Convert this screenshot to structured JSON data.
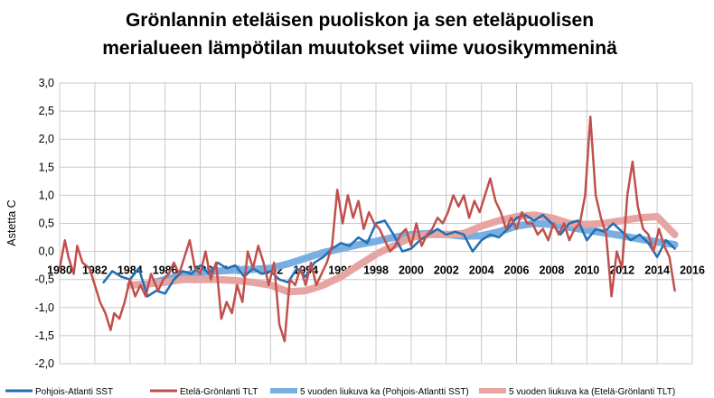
{
  "chart_data": {
    "type": "line",
    "title": [
      "Grönlannin eteläisen puoliskon ja sen eteläpuolisen",
      "merialueen lämpötilan muutokset viime vuosikymmeninä"
    ],
    "ylabel": "Astetta C",
    "xlabel": "",
    "xlim": [
      1980,
      2016
    ],
    "ylim": [
      -2.0,
      3.0
    ],
    "x_ticks": [
      "1980",
      "1982",
      "1984",
      "1986",
      "1988",
      "1990",
      "1992",
      "1994",
      "1996",
      "1998",
      "2000",
      "2002",
      "2004",
      "2006",
      "2008",
      "2010",
      "2012",
      "2014",
      "2016"
    ],
    "y_ticks": [
      "3,0",
      "2,5",
      "2,0",
      "1,5",
      "1,0",
      "0,5",
      "0,0",
      "-0,5",
      "-1,0",
      "-1,5",
      "-2,0"
    ],
    "grid": true,
    "legend_position": "bottom",
    "series": [
      {
        "name": "Pohjois-Atlanti SST",
        "color": "#1f6fb4",
        "x": [
          1982.5,
          1983.0,
          1983.5,
          1984.0,
          1984.5,
          1985.0,
          1985.5,
          1986.0,
          1986.5,
          1987.0,
          1987.5,
          1988.0,
          1988.5,
          1989.0,
          1989.5,
          1990.0,
          1990.5,
          1991.0,
          1991.5,
          1992.0,
          1992.5,
          1993.0,
          1993.5,
          1994.0,
          1994.5,
          1995.0,
          1995.5,
          1996.0,
          1996.5,
          1997.0,
          1997.5,
          1998.0,
          1998.5,
          1999.0,
          1999.5,
          2000.0,
          2000.5,
          2001.0,
          2001.5,
          2002.0,
          2002.5,
          2003.0,
          2003.5,
          2004.0,
          2004.5,
          2005.0,
          2005.5,
          2006.0,
          2006.5,
          2007.0,
          2007.5,
          2008.0,
          2008.5,
          2009.0,
          2009.5,
          2010.0,
          2010.5,
          2011.0,
          2011.5,
          2012.0,
          2012.5,
          2013.0,
          2013.5,
          2014.0,
          2014.5,
          2015.0
        ],
        "y": [
          -0.55,
          -0.35,
          -0.45,
          -0.5,
          -0.3,
          -0.8,
          -0.7,
          -0.75,
          -0.5,
          -0.35,
          -0.4,
          -0.25,
          -0.4,
          -0.2,
          -0.3,
          -0.25,
          -0.45,
          -0.3,
          -0.4,
          -0.35,
          -0.5,
          -0.55,
          -0.3,
          -0.45,
          -0.2,
          -0.1,
          0.05,
          0.15,
          0.1,
          0.25,
          0.15,
          0.5,
          0.55,
          0.3,
          0.0,
          0.05,
          0.2,
          0.3,
          0.4,
          0.3,
          0.35,
          0.3,
          0.0,
          0.2,
          0.3,
          0.25,
          0.4,
          0.6,
          0.65,
          0.55,
          0.65,
          0.5,
          0.3,
          0.5,
          0.55,
          0.2,
          0.4,
          0.35,
          0.5,
          0.35,
          0.2,
          0.3,
          0.15,
          -0.1,
          0.2,
          0.05
        ]
      },
      {
        "name": "Etelä-Grönlanti TLT",
        "color": "#c0504d",
        "x": [
          1980.0,
          1980.3,
          1980.5,
          1980.8,
          1981.0,
          1981.3,
          1981.7,
          1982.0,
          1982.3,
          1982.6,
          1982.9,
          1983.1,
          1983.4,
          1983.7,
          1984.0,
          1984.3,
          1984.6,
          1984.9,
          1985.2,
          1985.6,
          1985.9,
          1986.2,
          1986.5,
          1986.8,
          1987.1,
          1987.4,
          1987.7,
          1988.0,
          1988.3,
          1988.6,
          1988.9,
          1989.2,
          1989.5,
          1989.8,
          1990.1,
          1990.4,
          1990.7,
          1991.0,
          1991.3,
          1991.6,
          1991.9,
          1992.2,
          1992.5,
          1992.8,
          1993.1,
          1993.4,
          1993.7,
          1994.0,
          1994.3,
          1994.6,
          1994.9,
          1995.2,
          1995.5,
          1995.8,
          1996.1,
          1996.4,
          1996.7,
          1997.0,
          1997.3,
          1997.6,
          1997.9,
          1998.2,
          1998.5,
          1998.8,
          1999.1,
          1999.4,
          1999.7,
          2000.0,
          2000.3,
          2000.6,
          2000.9,
          2001.2,
          2001.5,
          2001.8,
          2002.1,
          2002.4,
          2002.7,
          2003.0,
          2003.3,
          2003.6,
          2003.9,
          2004.2,
          2004.5,
          2004.8,
          2005.1,
          2005.4,
          2005.7,
          2006.0,
          2006.3,
          2006.6,
          2006.9,
          2007.2,
          2007.5,
          2007.8,
          2008.1,
          2008.4,
          2008.7,
          2009.0,
          2009.3,
          2009.6,
          2009.9,
          2010.2,
          2010.5,
          2010.8,
          2011.1,
          2011.4,
          2011.7,
          2012.0,
          2012.3,
          2012.6,
          2012.9,
          2013.2,
          2013.5,
          2013.8,
          2014.1,
          2014.4,
          2014.7,
          2015.0
        ],
        "y": [
          -0.3,
          0.2,
          -0.1,
          -0.4,
          0.1,
          -0.2,
          -0.3,
          -0.6,
          -0.9,
          -1.1,
          -1.4,
          -1.1,
          -1.2,
          -0.9,
          -0.5,
          -0.8,
          -0.6,
          -0.8,
          -0.4,
          -0.7,
          -0.5,
          -0.4,
          -0.2,
          -0.4,
          -0.1,
          0.2,
          -0.3,
          -0.4,
          0.0,
          -0.5,
          -0.2,
          -1.2,
          -0.9,
          -1.1,
          -0.6,
          -0.9,
          0.0,
          -0.3,
          0.1,
          -0.2,
          -0.6,
          -0.2,
          -1.3,
          -1.6,
          -0.5,
          -0.6,
          -0.3,
          -0.6,
          -0.2,
          -0.6,
          -0.4,
          -0.2,
          0.1,
          1.1,
          0.5,
          1.0,
          0.6,
          0.9,
          0.4,
          0.7,
          0.5,
          0.4,
          0.2,
          0.0,
          0.1,
          0.3,
          0.4,
          0.1,
          0.5,
          0.1,
          0.3,
          0.4,
          0.6,
          0.5,
          0.7,
          1.0,
          0.8,
          1.0,
          0.6,
          0.9,
          0.7,
          1.0,
          1.3,
          0.9,
          0.7,
          0.4,
          0.6,
          0.4,
          0.7,
          0.5,
          0.5,
          0.3,
          0.4,
          0.2,
          0.5,
          0.3,
          0.5,
          0.2,
          0.4,
          0.5,
          1.0,
          2.4,
          1.0,
          0.6,
          0.3,
          -0.8,
          0.0,
          -0.3,
          1.0,
          1.6,
          0.8,
          0.4,
          0.3,
          0.0,
          0.4,
          0.1,
          -0.1,
          -0.7
        ]
      },
      {
        "name": "5 vuoden liukuva ka (Pohjois-Atlantti SST)",
        "color": "#7aaee0",
        "x": [
          1984.8,
          1986.0,
          1987.0,
          1988.0,
          1989.0,
          1990.0,
          1991.0,
          1992.0,
          1993.0,
          1994.0,
          1995.0,
          1996.0,
          1997.0,
          1998.0,
          1999.0,
          2000.0,
          2001.0,
          2002.0,
          2003.0,
          2004.0,
          2005.0,
          2006.0,
          2007.0,
          2008.0,
          2009.0,
          2010.0,
          2011.0,
          2012.0,
          2013.0,
          2014.0,
          2015.0
        ],
        "y": [
          -0.6,
          -0.5,
          -0.42,
          -0.38,
          -0.35,
          -0.33,
          -0.32,
          -0.3,
          -0.22,
          -0.12,
          -0.02,
          0.05,
          0.12,
          0.18,
          0.25,
          0.3,
          0.32,
          0.3,
          0.27,
          0.28,
          0.35,
          0.45,
          0.5,
          0.48,
          0.43,
          0.38,
          0.33,
          0.28,
          0.22,
          0.17,
          0.12
        ]
      },
      {
        "name": "5 vuoden liukuva ka (Etelä-Grönlanti TLT)",
        "color": "#e6a5a3",
        "x": [
          1984.0,
          1985.0,
          1986.0,
          1987.0,
          1988.0,
          1989.0,
          1990.0,
          1991.0,
          1992.0,
          1993.0,
          1994.0,
          1995.0,
          1996.0,
          1997.0,
          1998.0,
          1999.0,
          2000.0,
          2001.0,
          2002.0,
          2003.0,
          2004.0,
          2005.0,
          2006.0,
          2007.0,
          2008.0,
          2009.0,
          2010.0,
          2011.0,
          2012.0,
          2013.0,
          2014.0,
          2015.0
        ],
        "y": [
          -0.6,
          -0.58,
          -0.55,
          -0.5,
          -0.5,
          -0.5,
          -0.52,
          -0.55,
          -0.6,
          -0.72,
          -0.7,
          -0.6,
          -0.45,
          -0.25,
          -0.05,
          0.1,
          0.25,
          0.3,
          0.3,
          0.32,
          0.45,
          0.55,
          0.62,
          0.65,
          0.6,
          0.5,
          0.48,
          0.5,
          0.55,
          0.6,
          0.62,
          0.3
        ]
      }
    ]
  }
}
